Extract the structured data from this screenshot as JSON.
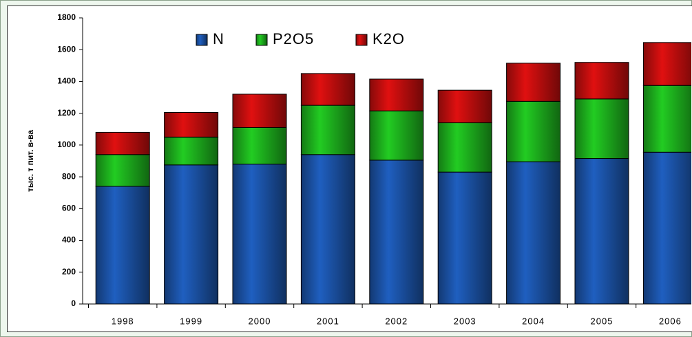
{
  "chart_data": {
    "type": "stacked_bar",
    "y_label": "тыс. т пит. в-ва",
    "categories": [
      "1998",
      "1999",
      "2000",
      "2001",
      "2002",
      "2003",
      "2004",
      "2005",
      "2006"
    ],
    "series": [
      {
        "name": "N",
        "color": "#1f5fc0",
        "values": [
          740,
          875,
          880,
          940,
          905,
          830,
          895,
          915,
          955
        ]
      },
      {
        "name": "P2O5",
        "color": "#22cc22",
        "values": [
          200,
          175,
          230,
          310,
          310,
          310,
          380,
          375,
          420
        ]
      },
      {
        "name": "K2O",
        "color": "#e01010",
        "values": [
          140,
          155,
          210,
          200,
          200,
          205,
          240,
          230,
          270
        ]
      }
    ],
    "ylim": [
      0,
      1800
    ],
    "yticks": [
      0,
      200,
      400,
      600,
      800,
      1000,
      1200,
      1400,
      1600,
      1800
    ],
    "grid": false
  }
}
